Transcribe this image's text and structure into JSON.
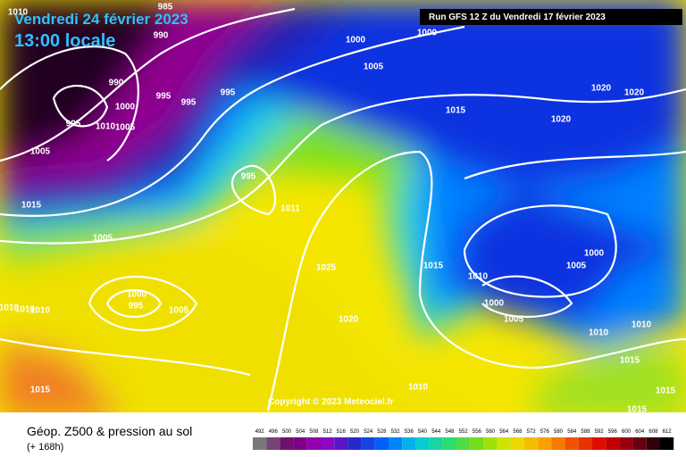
{
  "header": {
    "date": "Vendredi 24 février 2023",
    "time": "13:00 locale",
    "run": "Run GFS 12 Z du Vendredi 17 février 2023"
  },
  "isobar_labels": [
    "985",
    "990",
    "990",
    "1000",
    "995",
    "1010",
    "1005",
    "995",
    "995",
    "995",
    "1005",
    "1015",
    "1010",
    "995",
    "1000",
    "1000",
    "1005",
    "1015",
    "1020",
    "1020",
    "1020",
    "1011",
    "1005",
    "1025",
    "1015",
    "1010",
    "1000",
    "1005",
    "1000",
    "995",
    "1010",
    "1010",
    "1010",
    "1005",
    "1000",
    "1020",
    "1005",
    "1010",
    "1010",
    "1015",
    "1015",
    "1010",
    "1015",
    "1015",
    "1010"
  ],
  "copyright": "Copyright © 2023 Meteociel.fr",
  "footer": {
    "title": "Géop. Z500 & pression au sol",
    "lead": "(+ 168h)"
  },
  "colorbar": {
    "labels": [
      "492",
      "496",
      "500",
      "504",
      "508",
      "512",
      "516",
      "520",
      "524",
      "528",
      "532",
      "536",
      "540",
      "544",
      "548",
      "552",
      "556",
      "560",
      "564",
      "568",
      "572",
      "576",
      "580",
      "584",
      "588",
      "592",
      "596",
      "600",
      "604",
      "608",
      "612"
    ]
  }
}
